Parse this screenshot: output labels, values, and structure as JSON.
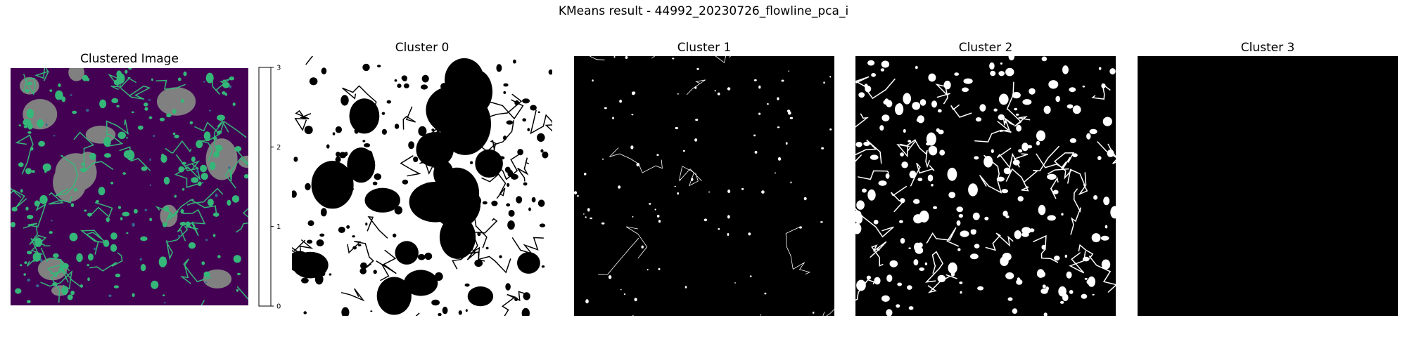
{
  "chart_data": {
    "title": "KMeans result - 44992_20230726_flowline_pca_i",
    "type": "heatmap",
    "panels": [
      {
        "id": "clustered",
        "title": "Clustered Image",
        "kind": "label-map",
        "label_colors": {
          "0": "#440154",
          "1": "#31688e",
          "2": "#35b779",
          "3": "#fde725"
        },
        "masked_color": "#808080",
        "colorbar": {
          "ticks": [
            "0",
            "1",
            "2",
            "3"
          ],
          "range": [
            0,
            3
          ],
          "colors": [
            "#440154",
            "#31688e",
            "#35b779",
            "#fde725"
          ]
        }
      },
      {
        "id": "c0",
        "title": "Cluster 0",
        "kind": "mask",
        "foreground": "#ffffff",
        "background": "#000000"
      },
      {
        "id": "c1",
        "title": "Cluster 1",
        "kind": "mask",
        "foreground": "#ffffff",
        "background": "#000000"
      },
      {
        "id": "c2",
        "title": "Cluster 2",
        "kind": "mask",
        "foreground": "#ffffff",
        "background": "#000000"
      },
      {
        "id": "c3",
        "title": "Cluster 3",
        "kind": "mask",
        "foreground": "#ffffff",
        "background": "#000000"
      }
    ]
  }
}
